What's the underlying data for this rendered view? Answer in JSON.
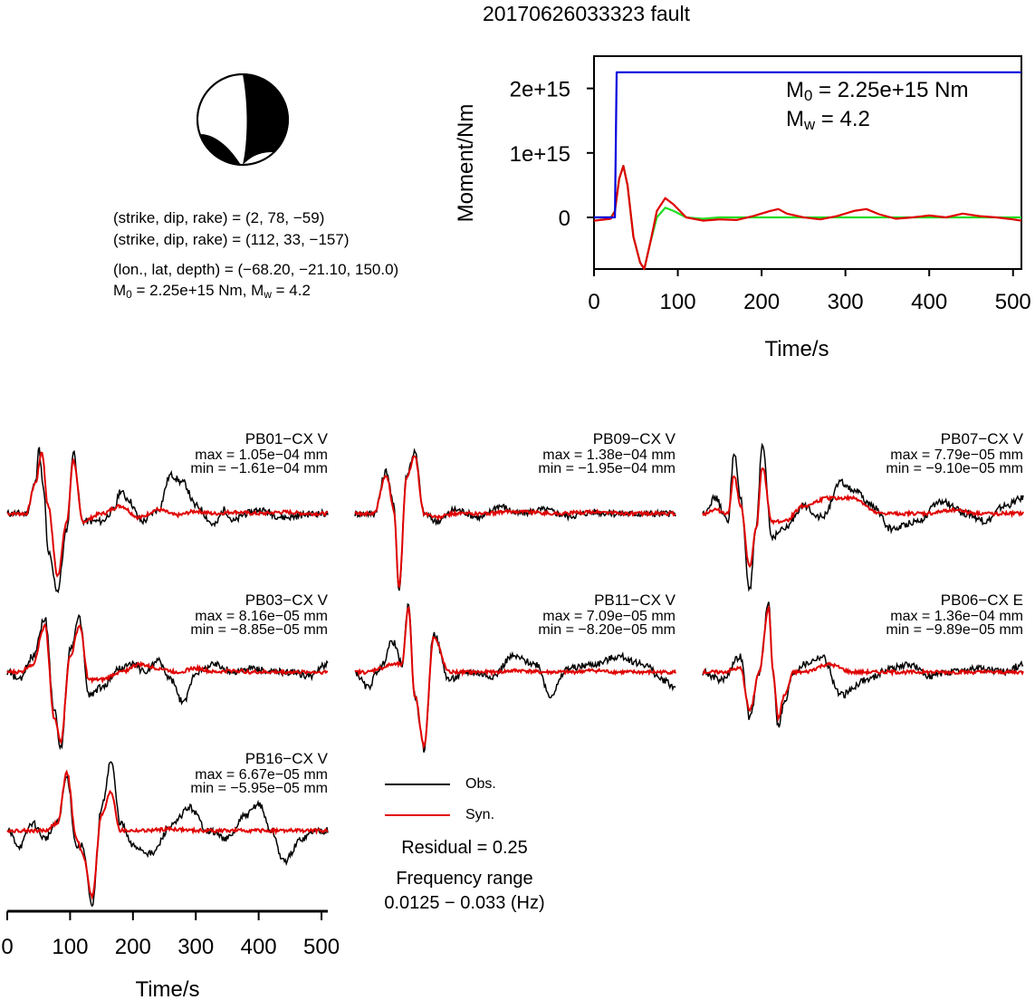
{
  "title": "20170626033323 fault",
  "focal_mechanism": {
    "planes": [
      {
        "text": "(strike, dip, rake) = (2, 78, −59)"
      },
      {
        "text": "(strike, dip, rake) = (112, 33, −157)"
      }
    ],
    "location": "(lon., lat, depth) = (−68.20, −21.10, 150.0)",
    "moment_line": {
      "m0_label": "M",
      "m0_sub": "0",
      "m0_value": " = 2.25e+15 Nm, M",
      "mw_sub": "w",
      "mw_value": " = 4.2"
    }
  },
  "stf_plot": {
    "m0_text": {
      "label": "M",
      "sub": "0",
      "value": " = 2.25e+15 Nm"
    },
    "mw_text": {
      "label": "M",
      "sub": "w",
      "value": " = 4.2"
    },
    "ylabel": "Moment/Nm",
    "xlabel": "Time/s",
    "x_ticks": [
      "0",
      "100",
      "200",
      "300",
      "400",
      "500"
    ],
    "y_ticks": [
      "0",
      "1e+15",
      "2e+15"
    ],
    "colors": {
      "moment": "#0000dd",
      "observed_stf": "#e00000",
      "model_stf": "#22dd22"
    }
  },
  "stations": [
    {
      "name": "PB01−CX V",
      "max": "max = 1.05e−04 mm",
      "min": "min = −1.61e−04 mm"
    },
    {
      "name": "PB09−CX V",
      "max": "max = 1.38e−04 mm",
      "min": "min = −1.95e−04 mm"
    },
    {
      "name": "PB07−CX V",
      "max": "max = 7.79e−05 mm",
      "min": "min = −9.10e−05 mm"
    },
    {
      "name": "PB03−CX V",
      "max": "max = 8.16e−05 mm",
      "min": "min = −8.85e−05 mm"
    },
    {
      "name": "PB11−CX V",
      "max": "max = 7.09e−05 mm",
      "min": "min = −8.20e−05 mm"
    },
    {
      "name": "PB06−CX E",
      "max": "max = 1.36e−04 mm",
      "min": "min = −9.89e−05 mm"
    },
    {
      "name": "PB16−CX V",
      "max": "max = 6.67e−05 mm",
      "min": "min = −5.95e−05 mm"
    }
  ],
  "waveform_axis": {
    "x_ticks": [
      "0",
      "100",
      "200",
      "300",
      "400",
      "500"
    ],
    "xlabel": "Time/s"
  },
  "legend": [
    {
      "label": "Obs.",
      "color": "#000000"
    },
    {
      "label": "Syn.",
      "color": "#e00000"
    }
  ],
  "residual": "Residual = 0.25",
  "frequency_label": "Frequency range",
  "frequency_value": "0.0125 − 0.033 (Hz)",
  "chart_data": [
    {
      "type": "line",
      "title": "",
      "xlabel": "Time/s",
      "ylabel": "Moment/Nm",
      "xlim": [
        0,
        510
      ],
      "ylim": [
        -800000000000000.0,
        2500000000000000.0
      ],
      "series": [
        {
          "name": "",
          "color": "#0000dd",
          "x": [
            0,
            15,
            25,
            27,
            510
          ],
          "y": [
            0,
            0,
            0,
            2250000000000000.0,
            2250000000000000.0
          ]
        },
        {
          "name": "",
          "color": "#e00000",
          "x": [
            0,
            20,
            25,
            30,
            35,
            40,
            47,
            55,
            60,
            67,
            75,
            85,
            95,
            110,
            130,
            150,
            170,
            190,
            210,
            220,
            230,
            250,
            270,
            290,
            310,
            325,
            340,
            360,
            380,
            400,
            420,
            440,
            460,
            480,
            500,
            510
          ],
          "y": [
            -50000000000000.0,
            -20000000000000.0,
            100000000000000.0,
            600000000000000.0,
            800000000000000.0,
            500000000000000.0,
            -300000000000000.0,
            -700000000000000.0,
            -800000000000000.0,
            -400000000000000.0,
            100000000000000.0,
            300000000000000.0,
            200000000000000.0,
            0,
            -50000000000000.0,
            -30000000000000.0,
            -40000000000000.0,
            20000000000000.0,
            100000000000000.0,
            130000000000000.0,
            60000000000000.0,
            0,
            -30000000000000.0,
            20000000000000.0,
            100000000000000.0,
            130000000000000.0,
            50000000000000.0,
            -20000000000000.0,
            0,
            30000000000000.0,
            0,
            60000000000000.0,
            20000000000000.0,
            0,
            -30000000000000.0,
            -50000000000000.0
          ]
        },
        {
          "name": "",
          "color": "#22dd22",
          "x": [
            0,
            20,
            25,
            30,
            35,
            40,
            47,
            55,
            60,
            67,
            75,
            85,
            95,
            110,
            130,
            150,
            200,
            510
          ],
          "y": [
            0,
            0,
            100000000000000.0,
            600000000000000.0,
            800000000000000.0,
            500000000000000.0,
            -300000000000000.0,
            -700000000000000.0,
            -800000000000000.0,
            -400000000000000.0,
            0,
            150000000000000.0,
            100000000000000.0,
            0,
            -20000000000000.0,
            0,
            0,
            0
          ]
        }
      ]
    },
    {
      "type": "line",
      "title": "",
      "xlabel": "Time/s",
      "xlim": [
        0,
        510
      ],
      "note": "normalized waveforms per station; Obs. (black) and Syn. (red)",
      "stations": [
        {
          "name": "PB01−CX V",
          "obs_x": [
            0,
            30,
            45,
            50,
            58,
            65,
            80,
            95,
            105,
            120,
            150,
            170,
            180,
            190,
            215,
            240,
            260,
            280,
            300,
            330,
            345,
            360,
            380,
            400,
            440,
            490,
            510
          ],
          "obs_y": [
            0,
            0,
            0.4,
            0.85,
            0.3,
            -0.5,
            -1.0,
            -0.2,
            0.8,
            -0.1,
            -0.1,
            0.05,
            0.3,
            0.2,
            -0.1,
            0.05,
            0.5,
            0.4,
            0.1,
            -0.15,
            0.05,
            -0.1,
            0.0,
            0.05,
            -0.05,
            0.0,
            0.0
          ],
          "syn_x": [
            0,
            30,
            45,
            55,
            65,
            80,
            95,
            105,
            120,
            150,
            180,
            210,
            240,
            270,
            300,
            330,
            360,
            400,
            440,
            480,
            510
          ],
          "syn_y": [
            0,
            0,
            0.4,
            0.8,
            0.1,
            -0.8,
            -0.1,
            0.7,
            -0.1,
            0.0,
            0.1,
            -0.05,
            0.05,
            -0.02,
            0.03,
            0.0,
            0.02,
            0.0,
            0.02,
            0.0,
            0.0
          ]
        },
        {
          "name": "PB09−CX V",
          "obs_x": [
            0,
            30,
            50,
            62,
            70,
            82,
            95,
            110,
            130,
            160,
            200,
            230,
            260,
            300,
            340,
            380,
            420,
            460,
            510
          ],
          "obs_y": [
            0,
            0,
            0.55,
            0.1,
            -1.0,
            0.5,
            0.8,
            0.0,
            -0.1,
            0.05,
            -0.05,
            0.1,
            0.0,
            0.05,
            -0.03,
            0.02,
            0.0,
            0.0,
            0.0
          ],
          "syn_x": [
            0,
            30,
            50,
            62,
            70,
            82,
            95,
            110,
            130,
            160,
            200,
            260,
            320,
            380,
            440,
            510
          ],
          "syn_y": [
            0,
            0,
            0.5,
            0.05,
            -0.95,
            0.45,
            0.75,
            0.0,
            -0.05,
            0.0,
            0.0,
            0.03,
            0.0,
            0.02,
            0.0,
            0.0
          ]
        },
        {
          "name": "PB07−CX V",
          "obs_x": [
            0,
            20,
            40,
            50,
            60,
            75,
            85,
            95,
            110,
            130,
            160,
            190,
            220,
            240,
            270,
            300,
            340,
            380,
            420,
            450,
            480,
            510
          ],
          "obs_y": [
            0,
            0.2,
            -0.1,
            0.8,
            0.2,
            -1.0,
            -0.2,
            0.9,
            -0.3,
            -0.2,
            0.1,
            -0.05,
            0.4,
            0.3,
            0.1,
            -0.2,
            -0.1,
            0.15,
            0.0,
            -0.1,
            0.1,
            0.2
          ],
          "syn_x": [
            0,
            20,
            40,
            50,
            60,
            75,
            85,
            95,
            110,
            130,
            160,
            200,
            240,
            280,
            320,
            360,
            400,
            440,
            480,
            510
          ],
          "syn_y": [
            0,
            0.05,
            0.0,
            0.5,
            0.1,
            -0.7,
            -0.2,
            0.6,
            -0.1,
            -0.1,
            0.1,
            0.2,
            0.2,
            0.0,
            0.0,
            0.0,
            0.05,
            0.0,
            0.0,
            0.0
          ]
        },
        {
          "name": "PB03−CX V",
          "obs_x": [
            0,
            20,
            40,
            60,
            75,
            85,
            100,
            115,
            130,
            150,
            180,
            200,
            220,
            240,
            260,
            280,
            300,
            330,
            360,
            390,
            420,
            450,
            480,
            510
          ],
          "obs_y": [
            0,
            -0.1,
            0.2,
            0.7,
            -0.5,
            -1.0,
            0.3,
            0.7,
            -0.3,
            -0.2,
            0.05,
            0.1,
            0.0,
            0.15,
            -0.1,
            -0.4,
            0.0,
            0.1,
            0.0,
            0.05,
            0.0,
            0.0,
            -0.05,
            0.1
          ],
          "syn_x": [
            0,
            20,
            40,
            60,
            75,
            85,
            100,
            115,
            130,
            150,
            180,
            210,
            240,
            270,
            300,
            330,
            360,
            390,
            420,
            450,
            480,
            510
          ],
          "syn_y": [
            0,
            0,
            0.1,
            0.6,
            -0.6,
            -0.9,
            0.2,
            0.6,
            -0.1,
            -0.1,
            0.0,
            0.1,
            0.05,
            0.0,
            0.05,
            0.0,
            0.02,
            0.0,
            0.0,
            0.0,
            0.0,
            0.0
          ]
        },
        {
          "name": "PB11−CX V",
          "obs_x": [
            0,
            20,
            40,
            60,
            75,
            85,
            95,
            110,
            125,
            150,
            180,
            220,
            250,
            290,
            310,
            340,
            380,
            420,
            460,
            490,
            510
          ],
          "obs_y": [
            0,
            -0.2,
            0.05,
            0.4,
            0.1,
            0.9,
            -0.3,
            -1.0,
            0.5,
            -0.1,
            0.0,
            -0.05,
            0.2,
            0.1,
            -0.3,
            0.05,
            0.1,
            0.2,
            0.1,
            -0.1,
            -0.2
          ],
          "syn_x": [
            0,
            20,
            40,
            60,
            75,
            85,
            95,
            110,
            125,
            150,
            180,
            220,
            260,
            300,
            340,
            380,
            420,
            460,
            510
          ],
          "syn_y": [
            0,
            0,
            0.05,
            0.1,
            0.1,
            0.85,
            -0.3,
            -0.95,
            0.45,
            0.0,
            0.0,
            0.0,
            0.02,
            0.0,
            0.0,
            0.02,
            0.0,
            0.0,
            0.0
          ]
        },
        {
          "name": "PB06−CX E",
          "obs_x": [
            0,
            30,
            60,
            75,
            90,
            105,
            112,
            120,
            130,
            145,
            160,
            190,
            220,
            260,
            300,
            330,
            360,
            400,
            440,
            480,
            510
          ],
          "obs_y": [
            0,
            -0.1,
            0.2,
            -0.6,
            0.0,
            0.9,
            0.0,
            -0.7,
            -0.4,
            0.0,
            0.1,
            0.2,
            -0.3,
            -0.1,
            0.05,
            0.1,
            -0.05,
            0.0,
            0.05,
            0.0,
            0.1
          ],
          "syn_x": [
            0,
            30,
            60,
            75,
            90,
            105,
            112,
            120,
            130,
            145,
            160,
            200,
            240,
            280,
            320,
            360,
            400,
            440,
            480,
            510
          ],
          "syn_y": [
            0,
            0,
            0.05,
            -0.5,
            0.0,
            0.85,
            0.0,
            -0.6,
            -0.3,
            0.0,
            0.0,
            0.1,
            0.0,
            0.0,
            0.0,
            0.0,
            0.0,
            0.0,
            0.0,
            0.0
          ]
        },
        {
          "name": "PB16−CX V",
          "obs_x": [
            0,
            20,
            40,
            60,
            80,
            95,
            110,
            120,
            135,
            150,
            165,
            180,
            200,
            230,
            260,
            290,
            320,
            350,
            380,
            400,
            420,
            440,
            470,
            490,
            510
          ],
          "obs_y": [
            0,
            -0.2,
            0.1,
            -0.1,
            0.1,
            0.7,
            -0.2,
            -0.2,
            -1.0,
            0.3,
            0.9,
            0.1,
            -0.2,
            -0.3,
            0.05,
            0.3,
            0.0,
            -0.1,
            0.2,
            0.35,
            0.0,
            -0.4,
            -0.1,
            0.0,
            0.0
          ],
          "syn_x": [
            0,
            20,
            40,
            60,
            80,
            95,
            110,
            120,
            135,
            150,
            165,
            180,
            220,
            260,
            300,
            340,
            380,
            420,
            460,
            510
          ],
          "syn_y": [
            0,
            0,
            0,
            0,
            0.1,
            0.75,
            -0.1,
            -0.3,
            -0.85,
            0.2,
            0.5,
            0.0,
            0.0,
            0.02,
            0.0,
            0.0,
            0.0,
            0.0,
            0.0,
            0.0
          ]
        }
      ]
    }
  ]
}
